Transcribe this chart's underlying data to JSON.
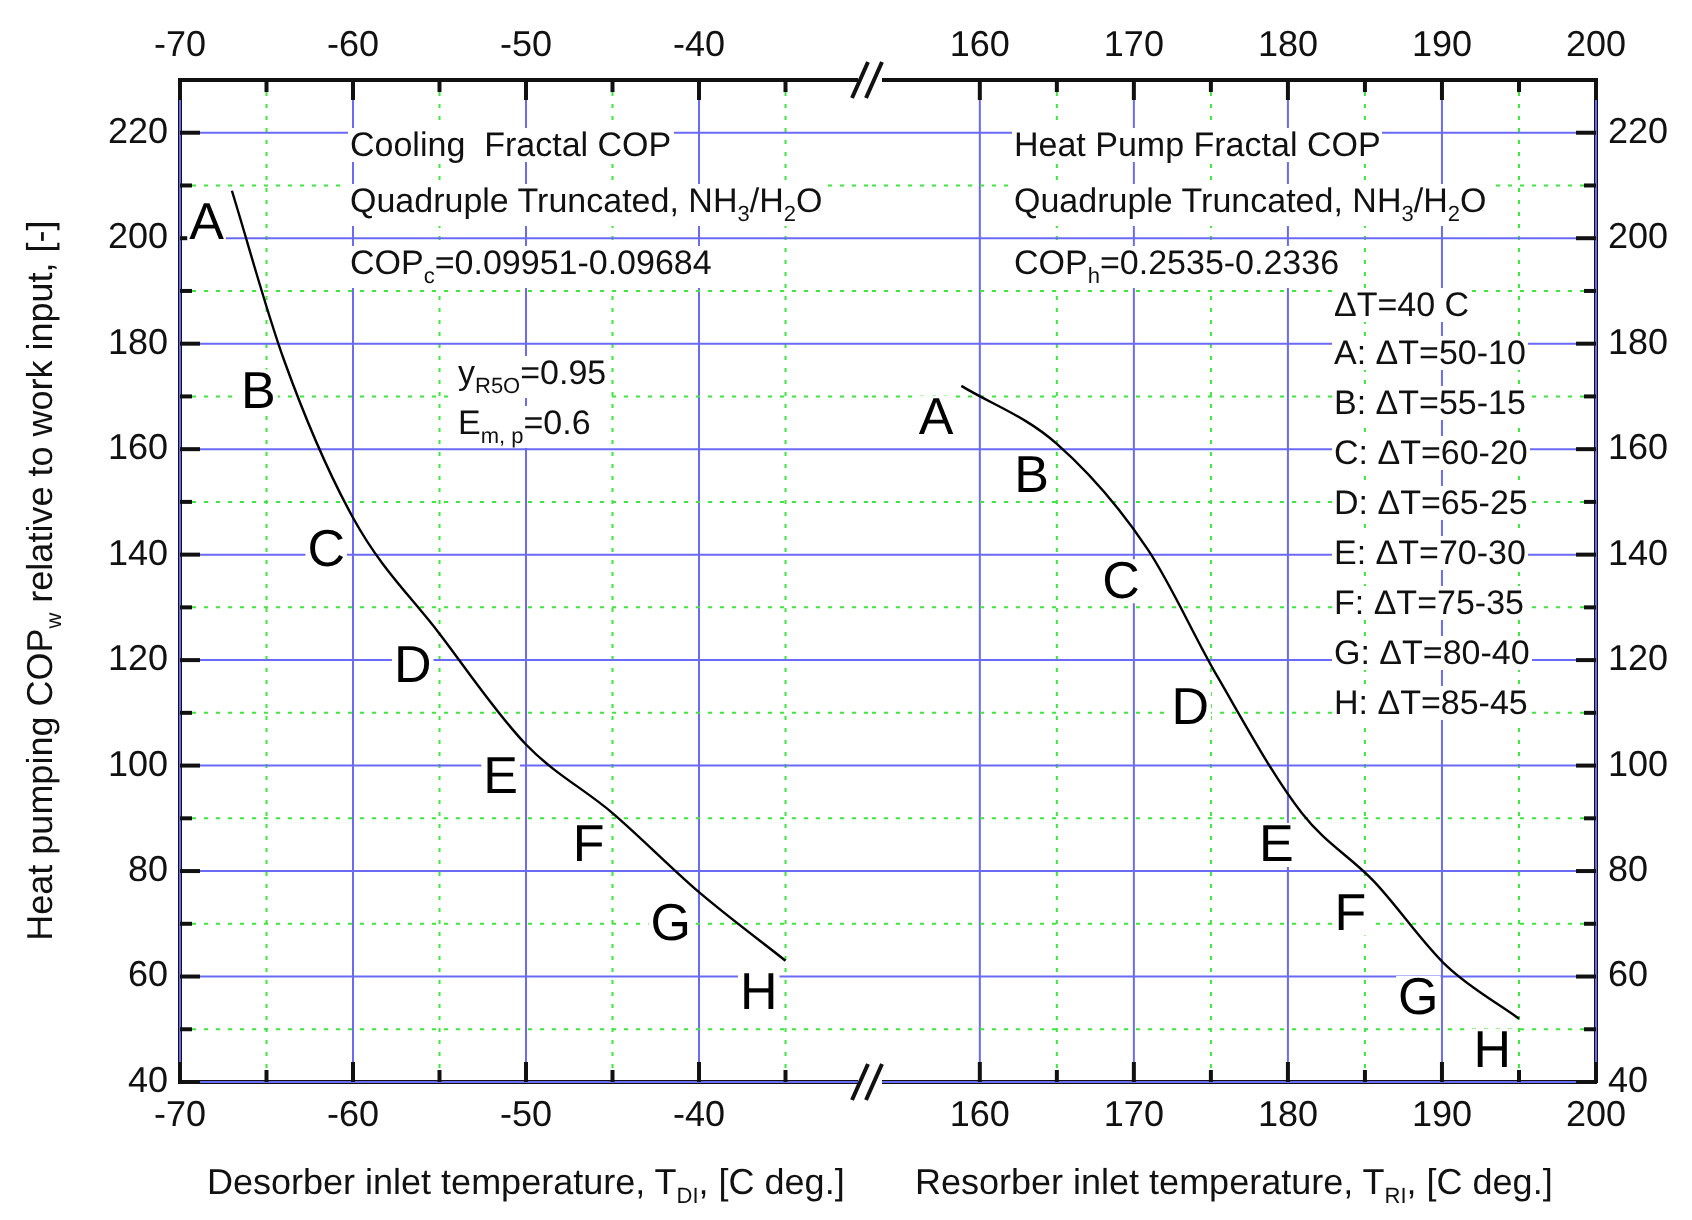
{
  "chart_data": [
    {
      "type": "line",
      "xlabel": "Desorber inlet temperature, T$_{DI}$, [C deg.]",
      "ylabel": "Heat pumping COP$_{w}$ relative to work input, [-]",
      "x": [
        -67,
        -64,
        -60,
        -55,
        -50,
        -45,
        -40,
        -35
      ],
      "series": [
        {
          "color": "#000000",
          "values": [
            209,
            177,
            147,
            125,
            104,
            91,
            76,
            63
          ]
        }
      ],
      "xlim": [
        -70,
        -30
      ],
      "xticks": [
        -70,
        {
          "value": -65,
          "label": null
        },
        -60,
        {
          "value": -55,
          "label": null
        },
        -50,
        {
          "value": -45,
          "label": null
        },
        -40,
        {
          "value": -35,
          "label": null
        }
      ],
      "x2lim": [
        -70,
        -30
      ],
      "x2ticks": [
        -70,
        {
          "value": -65,
          "label": null
        },
        -60,
        {
          "value": -55,
          "label": null
        },
        -50,
        {
          "value": -45,
          "label": null
        },
        -40,
        {
          "value": -35,
          "label": null
        }
      ],
      "ylim": [
        40,
        230
      ],
      "yticks": [
        40,
        {
          "value": 50,
          "label": null
        },
        60,
        {
          "value": 70,
          "label": null
        },
        80,
        {
          "value": 90,
          "label": null
        },
        100,
        {
          "value": 110,
          "label": null
        },
        120,
        {
          "value": 130,
          "label": null
        },
        140,
        {
          "value": 150,
          "label": null
        },
        160,
        {
          "value": 170,
          "label": null
        },
        180,
        {
          "value": 190,
          "label": null
        },
        200,
        {
          "value": 210,
          "label": null
        },
        220
      ],
      "grid": true,
      "marker": "none",
      "line_style": "solid",
      "legend": false,
      "annotations": [
        "Cooling  Fractal COP",
        "Quadruple Truncated, NH$_{3}$/H$_{2}$O",
        "COP$_{c}$=0.09951-0.09684",
        "y$_{R5O}$=0.95",
        "E$_{m, p}$=0.6",
        {
          "text": "A",
          "x": -67,
          "y": 209
        },
        {
          "text": "B",
          "x": -64,
          "y": 177
        },
        {
          "text": "C",
          "x": -60,
          "y": 147
        },
        {
          "text": "D",
          "x": -55,
          "y": 125
        },
        {
          "text": "E",
          "x": -50,
          "y": 104
        },
        {
          "text": "F",
          "x": -45,
          "y": 91
        },
        {
          "text": "G",
          "x": -40,
          "y": 76
        },
        {
          "text": "H",
          "x": -35,
          "y": 63
        }
      ]
    },
    {
      "type": "line",
      "xlabel": "Resorber inlet temperature, T$_{RI}$, [C deg.]",
      "x": [
        158.8,
        165,
        170.9,
        175.4,
        180.9,
        185.6,
        190.3,
        195
      ],
      "series": [
        {
          "color": "#000000",
          "values": [
            172,
            161,
            141,
            117,
            91,
            78,
            62,
            52
          ]
        }
      ],
      "xlim": [
        153,
        200
      ],
      "xticks": [
        160,
        {
          "value": 165,
          "label": null
        },
        170,
        {
          "value": 175,
          "label": null
        },
        180,
        {
          "value": 185,
          "label": null
        },
        190,
        {
          "value": 195,
          "label": null
        },
        200
      ],
      "x2lim": [
        153,
        200
      ],
      "x2ticks": [
        160,
        {
          "value": 165,
          "label": null
        },
        170,
        {
          "value": 175,
          "label": null
        },
        180,
        {
          "value": 185,
          "label": null
        },
        190,
        {
          "value": 195,
          "label": null
        },
        200
      ],
      "ylim": [
        40,
        230
      ],
      "yticks": [
        40,
        {
          "value": 50,
          "label": null
        },
        60,
        {
          "value": 70,
          "label": null
        },
        80,
        {
          "value": 90,
          "label": null
        },
        100,
        {
          "value": 110,
          "label": null
        },
        120,
        {
          "value": 130,
          "label": null
        },
        140,
        {
          "value": 150,
          "label": null
        },
        160,
        {
          "value": 170,
          "label": null
        },
        180,
        {
          "value": 190,
          "label": null
        },
        200,
        {
          "value": 210,
          "label": null
        },
        220
      ],
      "grid": true,
      "marker": "none",
      "line_style": "solid",
      "legend": false,
      "annotations": [
        "Heat Pump Fractal COP",
        "Quadruple Truncated, NH$_{3}$/H$_{2}$O",
        "COP$_{h}$=0.2535-0.2336",
        "ΔT=40 C",
        "A: ΔT=50-10",
        "B: ΔT=55-15",
        "C: ΔT=60-20",
        "D: ΔT=65-25",
        "E: ΔT=70-30",
        "F: ΔT=75-35",
        "G: ΔT=80-40",
        "H: ΔT=85-45",
        {
          "text": "A",
          "x": 158.8,
          "y": 172
        },
        {
          "text": "B",
          "x": 165,
          "y": 161
        },
        {
          "text": "C",
          "x": 170.9,
          "y": 141
        },
        {
          "text": "D",
          "x": 175.4,
          "y": 117
        },
        {
          "text": "E",
          "x": 180.9,
          "y": 91
        },
        {
          "text": "F",
          "x": 185.6,
          "y": 78
        },
        {
          "text": "G",
          "x": 190.3,
          "y": 62
        },
        {
          "text": "H",
          "x": 195,
          "y": 52
        }
      ]
    }
  ]
}
